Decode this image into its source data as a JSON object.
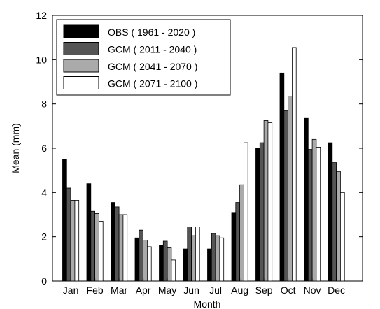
{
  "chart_data": {
    "type": "bar",
    "title": "",
    "xlabel": "Month",
    "ylabel": "Mean (mm)",
    "ylim": [
      0,
      12
    ],
    "yticks": [
      0,
      2,
      4,
      6,
      8,
      10,
      12
    ],
    "grid": false,
    "legend_position": "top-left",
    "categories": [
      "Jan",
      "Feb",
      "Mar",
      "Apr",
      "May",
      "Jun",
      "Jul",
      "Aug",
      "Sep",
      "Oct",
      "Nov",
      "Dec"
    ],
    "series": [
      {
        "name": "OBS ( 1961 - 2020 )",
        "color": "#000000",
        "values": [
          5.5,
          4.4,
          3.55,
          1.95,
          1.6,
          1.45,
          1.45,
          3.1,
          6.0,
          9.4,
          7.35,
          6.25
        ]
      },
      {
        "name": "GCM ( 2011 - 2040 )",
        "color": "#555555",
        "values": [
          4.2,
          3.15,
          3.35,
          2.3,
          1.8,
          2.45,
          2.15,
          3.55,
          6.25,
          7.7,
          5.95,
          5.35
        ]
      },
      {
        "name": "GCM ( 2041 - 2070 )",
        "color": "#aaaaaa",
        "values": [
          3.65,
          3.05,
          3.0,
          1.85,
          1.5,
          2.05,
          2.05,
          4.35,
          7.25,
          8.35,
          6.4,
          4.95
        ]
      },
      {
        "name": "GCM ( 2071 - 2100 )",
        "color": "#ffffff",
        "values": [
          3.65,
          2.7,
          3.0,
          1.55,
          0.95,
          2.45,
          1.95,
          6.25,
          7.15,
          10.55,
          6.05,
          4.0
        ]
      }
    ]
  }
}
